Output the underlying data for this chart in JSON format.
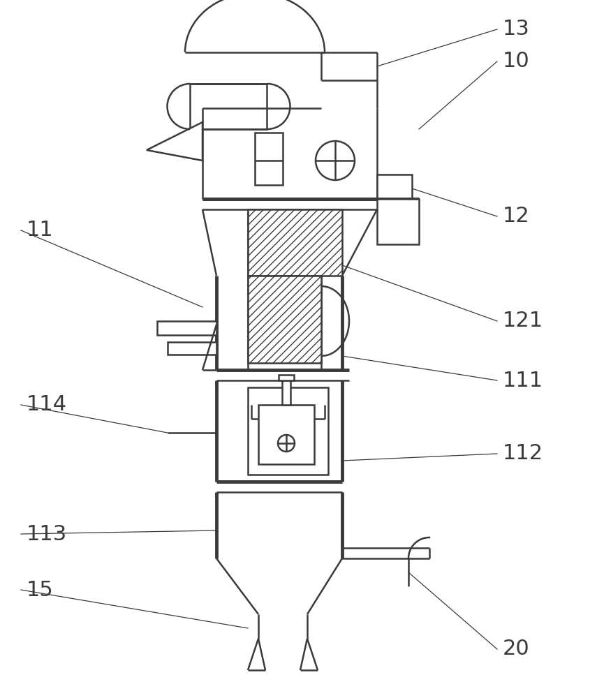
{
  "bg_color": "#ffffff",
  "line_color": "#3a3a3a",
  "line_width": 1.8,
  "thick_line": 3.5,
  "label_fontsize": 22
}
